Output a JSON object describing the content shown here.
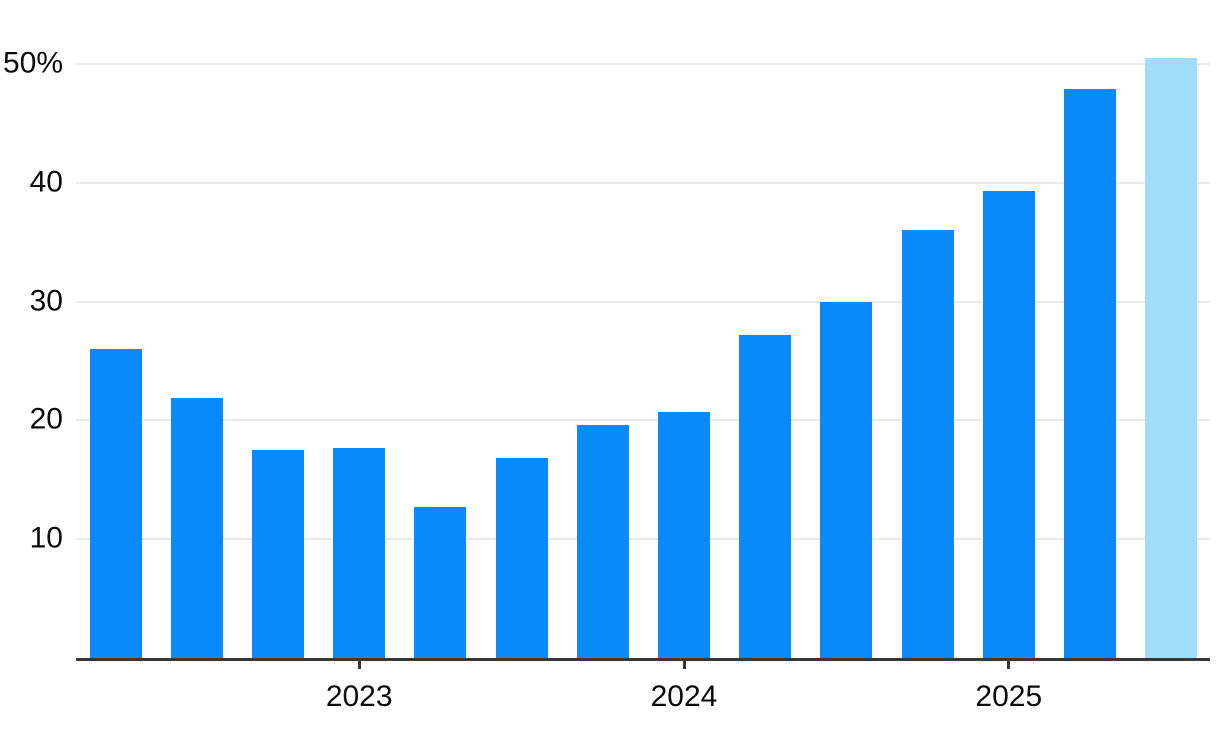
{
  "chart_data": {
    "type": "bar",
    "title": "",
    "xlabel": "",
    "ylabel": "",
    "unit": "%",
    "values": [
      26.0,
      21.9,
      17.5,
      17.7,
      12.7,
      16.8,
      19.6,
      20.7,
      27.2,
      30.0,
      36.0,
      39.3,
      47.9,
      50.5
    ],
    "highlight_index": 13,
    "y_ticks": [
      {
        "label": "10",
        "value": 10
      },
      {
        "label": "20",
        "value": 20
      },
      {
        "label": "30",
        "value": 30
      },
      {
        "label": "40",
        "value": 40
      },
      {
        "label": "50%",
        "value": 50
      }
    ],
    "x_ticks": [
      {
        "label": "2023",
        "bar_index": 3
      },
      {
        "label": "2024",
        "bar_index": 7
      },
      {
        "label": "2025",
        "bar_index": 11
      }
    ],
    "ylim": [
      0,
      50.5
    ],
    "grid": "horizontal",
    "legend": "none",
    "colors": {
      "bar": "#0989fa",
      "highlight_bar": "#9edefb",
      "gridline": "#e9e9e9",
      "axis": "#373737",
      "text": "#0b0b0b"
    }
  }
}
